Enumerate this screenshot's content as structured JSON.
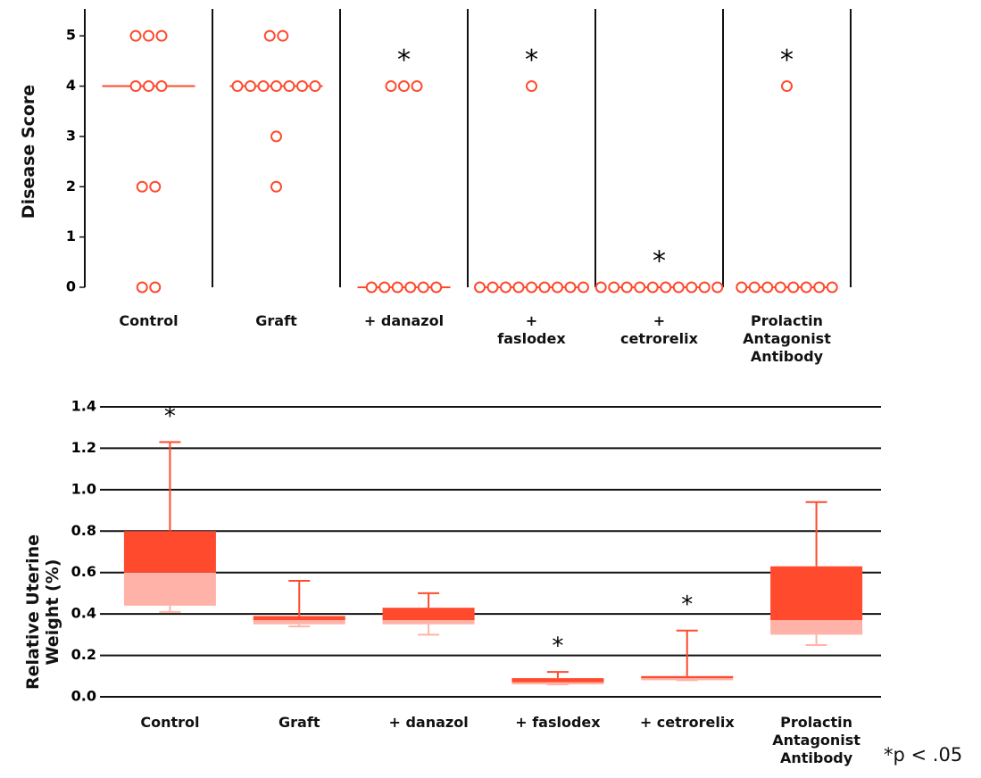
{
  "chart_data": [
    {
      "type": "dot",
      "ylabel": "Disease Score",
      "categories": [
        "Control",
        "Graft",
        "+ danazol",
        "+\nfaslodex",
        "+\ncetrorelix",
        "Prolactin\nAntagonist\nAntibody"
      ],
      "values": [
        [
          5,
          5,
          5,
          4,
          4,
          4,
          2,
          2,
          0,
          0
        ],
        [
          5,
          5,
          4,
          4,
          4,
          4,
          4,
          4,
          4,
          3,
          2
        ],
        [
          4,
          4,
          4,
          0,
          0,
          0,
          0,
          0,
          0
        ],
        [
          4,
          0,
          0,
          0,
          0,
          0,
          0,
          0,
          0,
          0
        ],
        [
          0,
          0,
          0,
          0,
          0,
          0,
          0,
          0,
          0,
          0
        ],
        [
          4,
          0,
          0,
          0,
          0,
          0,
          0,
          0,
          0
        ]
      ],
      "medians": [
        4,
        4,
        0,
        0,
        0,
        0
      ],
      "significance": [
        null,
        null,
        "*",
        "*",
        "*",
        "*"
      ],
      "color": "#ff4a2e",
      "ylim": [
        0,
        5.5
      ],
      "yticks": [
        0,
        1,
        2,
        3,
        4,
        5
      ]
    },
    {
      "type": "box",
      "ylabel": "Relative Uterine\nWeight (%)",
      "categories": [
        "Control",
        "Graft",
        "+ danazol",
        "+ faslodex",
        "+ cetrorelix",
        "Prolactin\nAntagonist\nAntibody"
      ],
      "min": [
        0.41,
        0.34,
        0.3,
        0.06,
        0.08,
        0.25
      ],
      "q1": [
        0.44,
        0.35,
        0.35,
        0.06,
        0.08,
        0.3
      ],
      "median": [
        0.6,
        0.37,
        0.37,
        0.07,
        0.09,
        0.37
      ],
      "q3": [
        0.8,
        0.39,
        0.43,
        0.09,
        0.1,
        0.63
      ],
      "max": [
        1.23,
        0.56,
        0.5,
        0.12,
        0.32,
        0.94
      ],
      "significance": [
        "*",
        null,
        null,
        "*",
        "*",
        null
      ],
      "color": "#ff4a2e",
      "lower_color": "#ffb3a8",
      "ylim": [
        0,
        1.4
      ],
      "yticks": [
        {
          "value": 0,
          "label": "0.0"
        },
        0.2,
        0.4,
        0.6,
        0.8,
        {
          "value": 1,
          "label": "1.0"
        },
        1.2,
        1.4
      ],
      "grid": true
    }
  ],
  "footnote": "*p < .05"
}
